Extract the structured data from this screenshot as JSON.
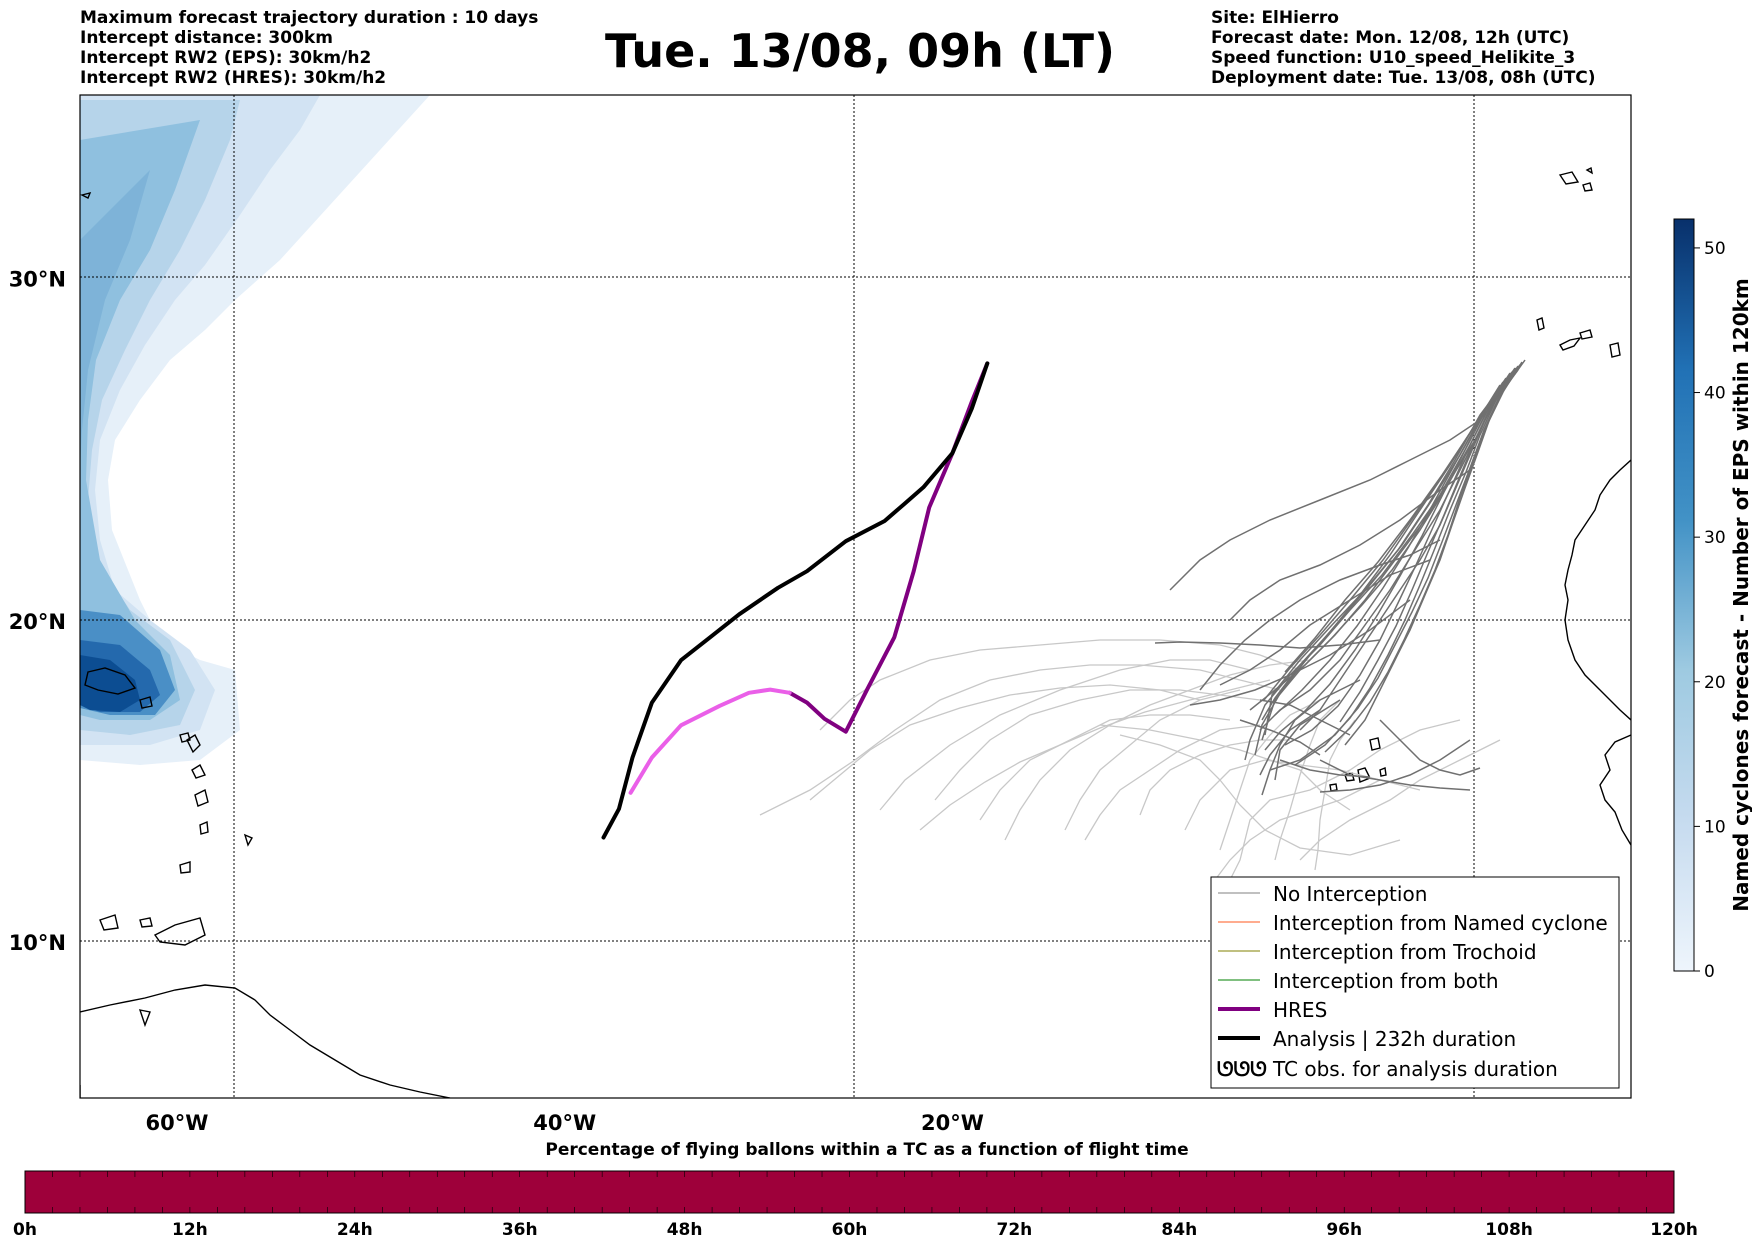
{
  "header_left": [
    "Maximum forecast trajectory duration : 10 days",
    "Intercept distance: 300km",
    "Intercept RW2 (EPS):  30km/h2",
    "Intercept RW2 (HRES): 30km/h2"
  ],
  "header_right": [
    "Site: ElHierro",
    "Forecast date: Mon. 12/08, 12h (UTC)",
    "Speed function: U10_speed_Helikite_3",
    "Deployment date: Tue. 13/08, 08h (UTC)"
  ],
  "title": "Tue. 13/08, 09h (LT)",
  "map": {
    "lon_range": [
      -65,
      15
    ],
    "lat_range": [
      5,
      35
    ],
    "lon_ticks": [
      {
        "value": -60,
        "label": "60°W"
      },
      {
        "value": -40,
        "label": "40°W"
      },
      {
        "value": -20,
        "label": "20°W"
      }
    ],
    "lat_ticks": [
      {
        "value": 30,
        "label": "30°N"
      },
      {
        "value": 20,
        "label": "20°N"
      },
      {
        "value": 10,
        "label": "10°N"
      }
    ],
    "grid": true,
    "density_colors": [
      "#f7fbff",
      "#deebf7",
      "#c6dbef",
      "#9ecae1",
      "#6baed6",
      "#4292c6",
      "#2171b5",
      "#08519c",
      "#08306b"
    ]
  },
  "colorbar_right": {
    "label": "Named cyclones forecast - Number of EPS within 120km",
    "ticks": [
      "0",
      "10",
      "20",
      "30",
      "40",
      "50"
    ],
    "range": [
      0,
      52
    ]
  },
  "trajectories": {
    "hres": [
      [
        -18.2,
        27.6
      ],
      [
        -19.0,
        26.5
      ],
      [
        -20.0,
        25.0
      ],
      [
        -21.2,
        23.4
      ],
      [
        -22.0,
        21.5
      ],
      [
        -23.0,
        19.5
      ],
      [
        -24.4,
        17.9
      ],
      [
        -25.5,
        16.6
      ],
      [
        -26.6,
        17.0
      ],
      [
        -27.5,
        17.5
      ],
      [
        -28.4,
        17.8
      ]
    ],
    "hres_pink": [
      [
        -28.4,
        17.8
      ],
      [
        -29.4,
        17.9
      ],
      [
        -30.5,
        17.8
      ],
      [
        -32.0,
        17.4
      ],
      [
        -34.0,
        16.8
      ],
      [
        -35.5,
        15.8
      ],
      [
        -36.6,
        14.7
      ]
    ],
    "analysis": [
      [
        -18.2,
        27.6
      ],
      [
        -19.0,
        26.3
      ],
      [
        -20.0,
        25.0
      ],
      [
        -21.5,
        24.0
      ],
      [
        -22.5,
        23.5
      ],
      [
        -23.5,
        23.0
      ],
      [
        -25.5,
        22.4
      ],
      [
        -27.5,
        21.5
      ],
      [
        -29.0,
        21.0
      ],
      [
        -31.0,
        20.2
      ],
      [
        -32.5,
        19.5
      ],
      [
        -34.0,
        18.8
      ],
      [
        -35.5,
        17.5
      ],
      [
        -36.5,
        15.8
      ],
      [
        -37.2,
        14.2
      ],
      [
        -38.0,
        13.3
      ]
    ]
  },
  "legend": [
    {
      "label": "No Interception",
      "color": "#808080",
      "width": 1
    },
    {
      "label": "Interception from Named cyclone",
      "color": "#ff5a1f",
      "width": 1
    },
    {
      "label": "Interception from Trochoid",
      "color": "#808000",
      "width": 1
    },
    {
      "label": "Interception from both",
      "color": "#008000",
      "width": 1
    },
    {
      "label": "HRES",
      "color": "#800080",
      "width": 4
    },
    {
      "label": "Analysis | 232h duration",
      "color": "#000000",
      "width": 4
    },
    {
      "label": "TC obs. for analysis duration",
      "symbol": "ᘎᘎᘎ"
    }
  ],
  "time_bar": {
    "title": "Percentage of flying ballons within a TC as a function of flight time",
    "labels": [
      "0h",
      "12h",
      "24h",
      "36h",
      "48h",
      "60h",
      "72h",
      "84h",
      "96h",
      "108h",
      "120h"
    ],
    "fill_color": "#9e003a"
  }
}
